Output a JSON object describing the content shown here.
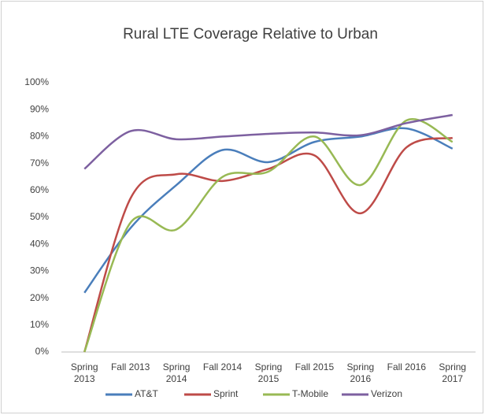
{
  "chart_data": {
    "type": "line",
    "title": "Rural LTE Coverage Relative to Urban",
    "categories": [
      "Spring 2013",
      "Fall 2013",
      "Spring 2014",
      "Fall 2014",
      "Spring 2015",
      "Fall 2015",
      "Spring 2016",
      "Fall 2016",
      "Spring 2017"
    ],
    "series": [
      {
        "name": "AT&T",
        "color": "#4a7ebb",
        "values": [
          22,
          46,
          62,
          75,
          70.5,
          78,
          80,
          83,
          75.5
        ]
      },
      {
        "name": "Sprint",
        "color": "#be4b48",
        "values": [
          0,
          57,
          66,
          63.5,
          68,
          73,
          51.5,
          76,
          79.5
        ]
      },
      {
        "name": "T-Mobile",
        "color": "#98b954",
        "values": [
          0,
          48,
          45.5,
          65,
          67,
          80,
          62,
          86,
          78
        ]
      },
      {
        "name": "Verizon",
        "color": "#7d60a0",
        "values": [
          68,
          82,
          79,
          80,
          81,
          81.5,
          80.5,
          85,
          88
        ]
      }
    ],
    "ylim": [
      0,
      100
    ],
    "yticks": [
      {
        "value": 0,
        "label": "0%"
      },
      {
        "value": 10,
        "label": "10%"
      },
      {
        "value": 20,
        "label": "20%"
      },
      {
        "value": 30,
        "label": "30%"
      },
      {
        "value": 40,
        "label": "40%"
      },
      {
        "value": 50,
        "label": "50%"
      },
      {
        "value": 60,
        "label": "60%"
      },
      {
        "value": 70,
        "label": "70%"
      },
      {
        "value": 80,
        "label": "80%"
      },
      {
        "value": 90,
        "label": "90%"
      },
      {
        "value": 100,
        "label": "100%"
      }
    ],
    "grid": false,
    "legend": "bottom"
  }
}
